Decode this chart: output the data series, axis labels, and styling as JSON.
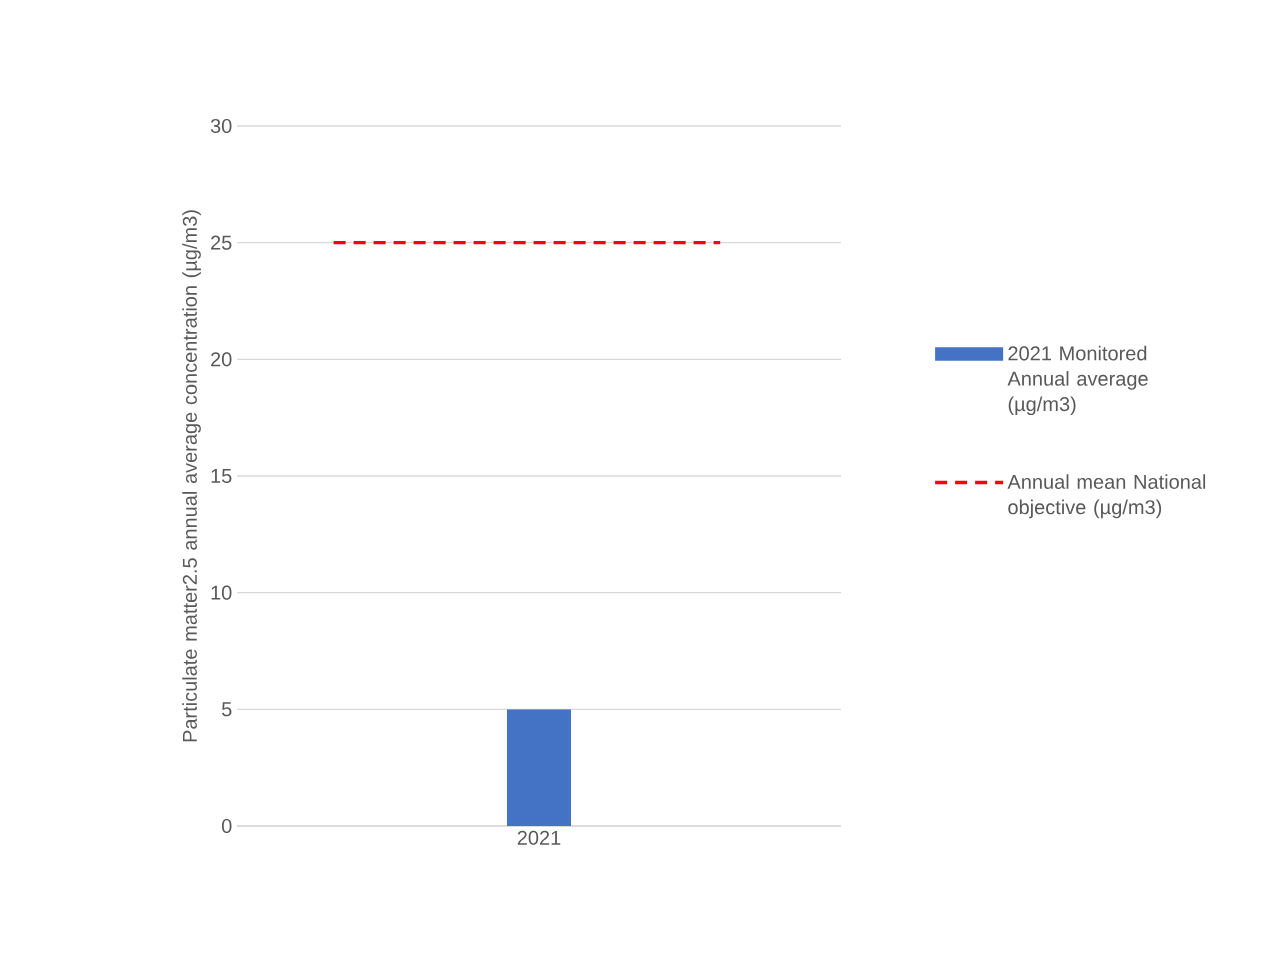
{
  "chart_data": {
    "type": "bar",
    "ylabel": "Particulate matter2.5 annual average concentration (µg/m3)",
    "categories": [
      "2021"
    ],
    "series": [
      {
        "name": "2021 Monitored Annual average (µg/m3)",
        "color": "#4472c4",
        "values": [
          5
        ]
      }
    ],
    "ref_lines": [
      {
        "axis": "y",
        "value": 25,
        "label": "Annual mean National objective (µg/m3)",
        "color": "#ff0000",
        "line_style": "dashed"
      }
    ],
    "ylim": [
      0,
      30
    ],
    "yticks": [
      0,
      5,
      10,
      15,
      20,
      25,
      30
    ],
    "grid": "y",
    "legend": "right"
  }
}
